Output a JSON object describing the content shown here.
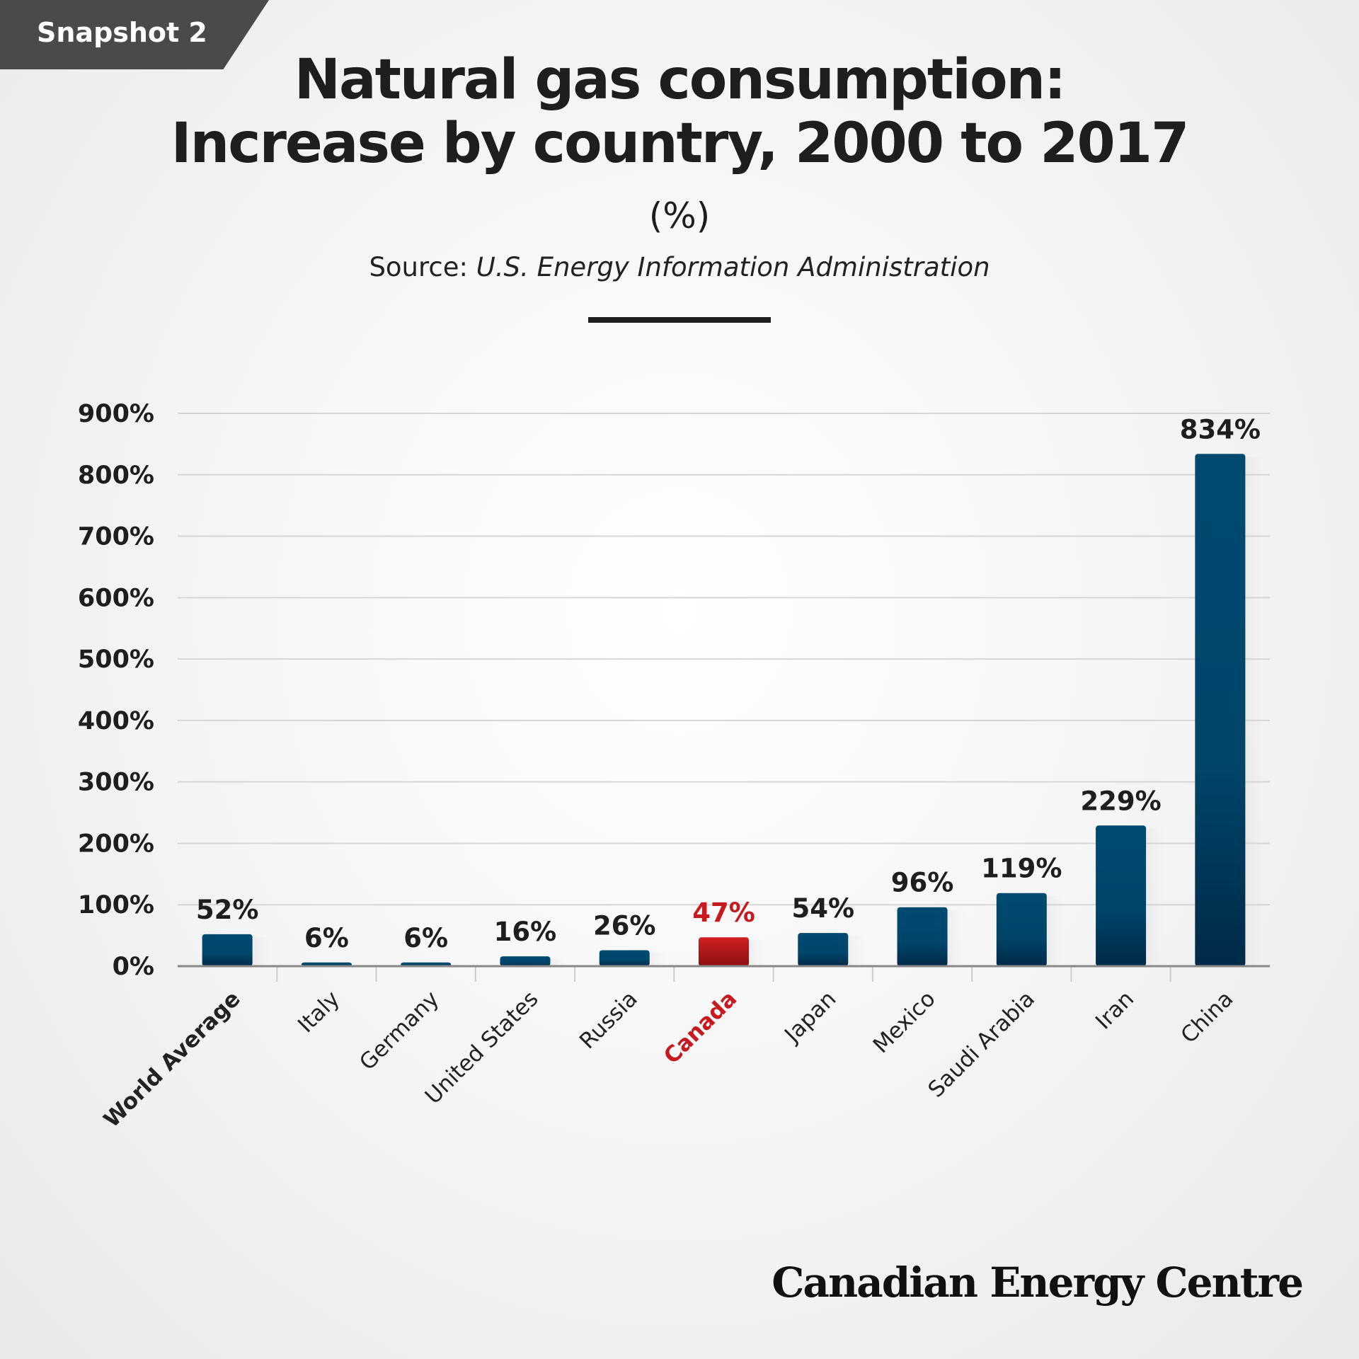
{
  "badge": "Snapshot 2",
  "title_line1": "Natural gas consumption:",
  "title_line2": "Increase by country, 2000 to 2017",
  "unit": "(%)",
  "source_prefix": "Source:",
  "source_name": "U.S. Energy Information Administration",
  "logo": "Canadian Energy Centre",
  "colors": {
    "bar": "#004a70",
    "bar_dark": "#002c4a",
    "highlight": "#c41a1a",
    "highlight_dark": "#8c0f12",
    "highlight_label": "#c8191e"
  },
  "chart_data": {
    "type": "bar",
    "title": "Natural gas consumption: Increase by country, 2000 to 2017",
    "ylabel": "(%)",
    "ylim": [
      0,
      900
    ],
    "yticks": [
      0,
      100,
      200,
      300,
      400,
      500,
      600,
      700,
      800,
      900
    ],
    "ytick_labels": [
      "0%",
      "100%",
      "200%",
      "300%",
      "400%",
      "500%",
      "600%",
      "700%",
      "800%",
      "900%"
    ],
    "grid": true,
    "categories": [
      "World Average",
      "Italy",
      "Germany",
      "United States",
      "Russia",
      "Canada",
      "Japan",
      "Mexico",
      "Saudi Arabia",
      "Iran",
      "China"
    ],
    "values": [
      52,
      6,
      6,
      16,
      26,
      47,
      54,
      96,
      119,
      229,
      834
    ],
    "data_labels": [
      "52%",
      "6%",
      "6%",
      "16%",
      "26%",
      "47%",
      "54%",
      "96%",
      "119%",
      "229%",
      "834%"
    ],
    "highlight": "Canada",
    "bold_category": "World Average"
  }
}
